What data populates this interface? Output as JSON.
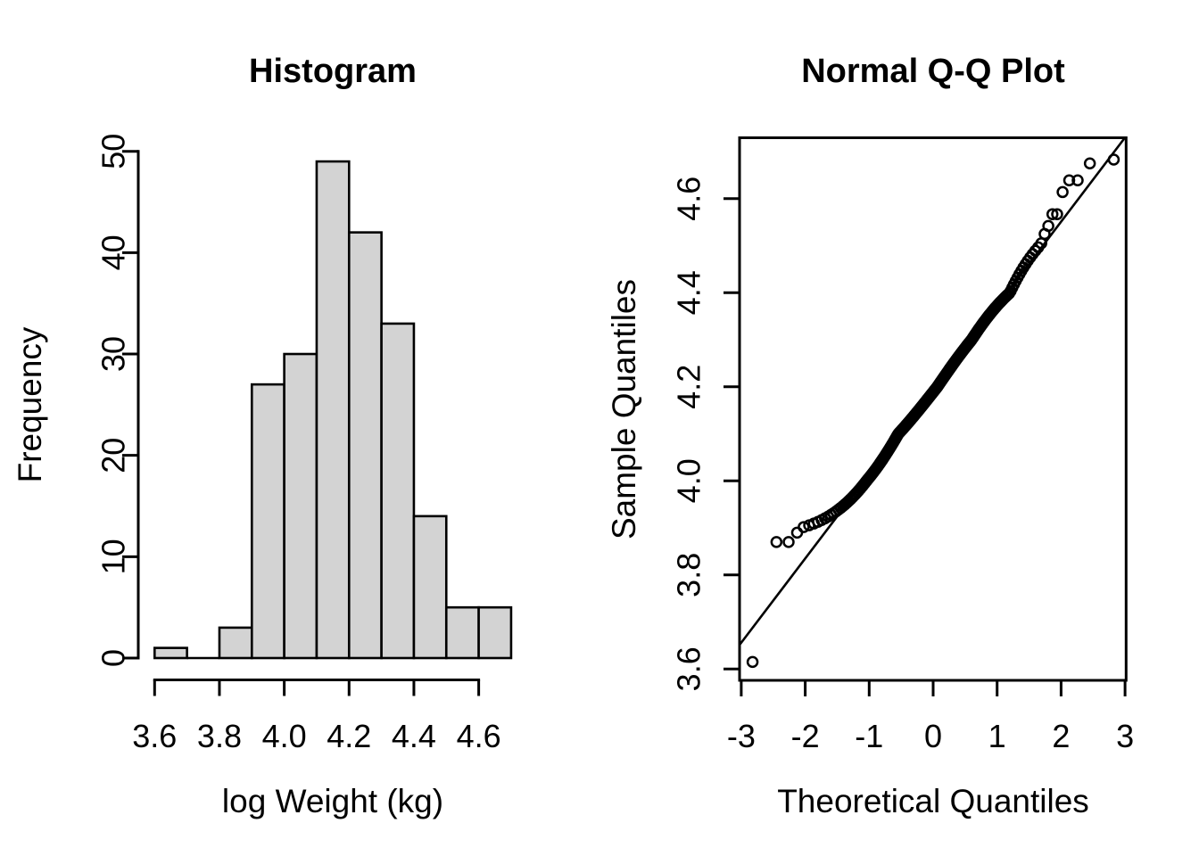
{
  "figure": {
    "background": "#FFFFFF",
    "foreground": "#000000",
    "panels": [
      "histogram",
      "normal-qq-plot"
    ]
  },
  "chart_data": [
    {
      "type": "bar",
      "variant": "histogram",
      "title": "Histogram",
      "xlabel": "log Weight (kg)",
      "ylabel": "Frequency",
      "bin_edges": [
        3.6,
        3.7,
        3.8,
        3.9,
        4.0,
        4.1,
        4.2,
        4.3,
        4.4,
        4.5,
        4.6,
        4.7
      ],
      "counts": [
        1,
        0,
        3,
        27,
        30,
        49,
        42,
        33,
        14,
        5,
        5
      ],
      "total_count": 209,
      "xtick_values": [
        3.6,
        3.8,
        4.0,
        4.2,
        4.4,
        4.6
      ],
      "xtick_labels": [
        "3.6",
        "3.8",
        "4.0",
        "4.2",
        "4.4",
        "4.6"
      ],
      "ytick_values": [
        0,
        10,
        20,
        30,
        40,
        50
      ],
      "ytick_labels": [
        "0",
        "10",
        "20",
        "30",
        "40",
        "50"
      ],
      "xlim": [
        3.556,
        4.744
      ],
      "ylim": [
        0,
        50
      ],
      "bar_fill": "#D3D3D3",
      "bar_stroke": "#000000",
      "grid": false,
      "legend": "none"
    },
    {
      "type": "scatter",
      "variant": "normal-qq",
      "title": "Normal Q-Q Plot",
      "xlabel": "Theoretical Quantiles",
      "ylabel": "Sample Quantiles",
      "n_points": 209,
      "marker": "open-circle",
      "marker_color": "#000000",
      "sample_bin_edges": [
        3.6,
        3.7,
        3.8,
        3.9,
        4.0,
        4.1,
        4.2,
        4.3,
        4.4,
        4.5,
        4.6,
        4.7
      ],
      "sample_counts": [
        1,
        0,
        3,
        27,
        30,
        49,
        42,
        33,
        14,
        5,
        5
      ],
      "lower_tail_values": [
        3.615,
        3.87,
        3.87,
        3.89
      ],
      "upper_tail_values": [
        4.505,
        4.525,
        4.542,
        4.567,
        4.567,
        4.614,
        4.639,
        4.639,
        4.675,
        4.683
      ],
      "lowest_point": [
        -2.82,
        3.615
      ],
      "highest_point": [
        2.82,
        4.683
      ],
      "reference_line": {
        "slope": 0.179,
        "intercept": 4.193
      },
      "xtick_values": [
        -3,
        -2,
        -1,
        0,
        1,
        2,
        3
      ],
      "xtick_labels": [
        "-3",
        "-2",
        "-1",
        "0",
        "1",
        "2",
        "3"
      ],
      "ytick_values": [
        3.6,
        3.8,
        4.0,
        4.2,
        4.4,
        4.6
      ],
      "ytick_labels": [
        "3.6",
        "3.8",
        "4.0",
        "4.2",
        "4.4",
        "4.6"
      ],
      "xlim": [
        -3.03,
        3.02
      ],
      "ylim": [
        3.576,
        4.729
      ],
      "grid": false,
      "legend": "none"
    }
  ]
}
